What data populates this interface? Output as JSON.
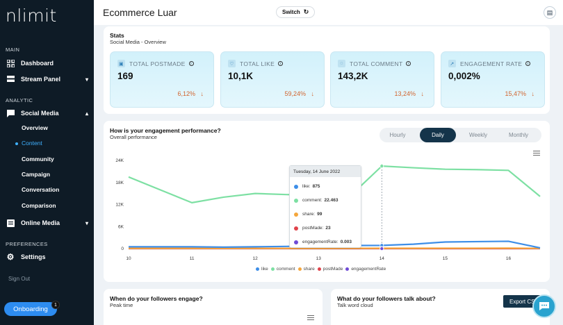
{
  "sidebar": {
    "logo": "nlimit",
    "sections": {
      "main": "MAIN",
      "analytic": "ANALYTIC",
      "preferences": "PREFERENCES"
    },
    "dashboard": "Dashboard",
    "stream_panel": "Stream Panel",
    "social_media": "Social Media",
    "social_sub": [
      "Overview",
      "Content",
      "Community",
      "Campaign",
      "Conversation",
      "Comparison"
    ],
    "online_media": "Online Media",
    "settings": "Settings",
    "sign_out": "Sign Out",
    "onboarding": "Onboarding",
    "onboarding_badge": "1"
  },
  "header": {
    "title": "Ecommerce Luar",
    "switch_label": "Switch"
  },
  "stats": {
    "title": "Stats",
    "subtitle": "Social Media - Overview",
    "cards": [
      {
        "label": "TOTAL POSTMADE",
        "value": "169",
        "change": "6,12%"
      },
      {
        "label": "TOTAL LIKE",
        "value": "10,1K",
        "change": "59,24%"
      },
      {
        "label": "TOTAL COMMENT",
        "value": "143,2K",
        "change": "13,24%"
      },
      {
        "label": "ENGAGEMENT RATE",
        "value": "0,002%",
        "change": "15,47%"
      }
    ]
  },
  "performance": {
    "title": "How is your engagement performance?",
    "subtitle": "Overall performance",
    "tabs": [
      "Hourly",
      "Daily",
      "Weekly",
      "Monthly"
    ],
    "active_tab": "Daily",
    "tooltip": {
      "date": "Tuesday, 14 June 2022",
      "rows": [
        {
          "key": "like:",
          "value": "875"
        },
        {
          "key": "comment:",
          "value": "22.463"
        },
        {
          "key": "share:",
          "value": "99"
        },
        {
          "key": "postMade:",
          "value": "23"
        },
        {
          "key": "engagementRate:",
          "value": "0.003"
        }
      ]
    }
  },
  "chart_data": {
    "type": "line",
    "x": [
      10,
      10.5,
      11,
      11.5,
      12,
      12.5,
      13,
      13.5,
      14,
      14.5,
      15,
      15.5,
      16,
      16.5
    ],
    "xticks": [
      "10",
      "11",
      "12",
      "13",
      "14",
      "15",
      "16"
    ],
    "yticks": [
      "0",
      "6K",
      "12K",
      "18K",
      "24K"
    ],
    "ylim": [
      0,
      24000
    ],
    "series": [
      {
        "name": "like",
        "color": "#3d8ee8",
        "values": [
          500,
          500,
          500,
          400,
          500,
          600,
          800,
          850,
          875,
          1200,
          1800,
          1900,
          2000,
          200
        ]
      },
      {
        "name": "comment",
        "color": "#7de0a3",
        "values": [
          19500,
          16000,
          12500,
          14000,
          15000,
          14700,
          14500,
          14300,
          22463,
          22000,
          21600,
          21500,
          21300,
          14200
        ]
      },
      {
        "name": "share",
        "color": "#f4a63c",
        "values": [
          60,
          60,
          60,
          60,
          60,
          60,
          70,
          80,
          99,
          100,
          110,
          110,
          120,
          60
        ]
      },
      {
        "name": "postMade",
        "color": "#e0434b",
        "values": [
          20,
          20,
          20,
          20,
          20,
          20,
          20,
          22,
          23,
          23,
          24,
          24,
          24,
          20
        ]
      },
      {
        "name": "engagementRate",
        "color": "#6f4bd6",
        "values": [
          0,
          0,
          0,
          0,
          0,
          0,
          0,
          0,
          0,
          0,
          0,
          0,
          0,
          0
        ]
      }
    ]
  },
  "followers_engage": {
    "title": "When do your followers engage?",
    "subtitle": "Peak time"
  },
  "followers_talk": {
    "title": "What do your followers talk about?",
    "subtitle": "Talk word cloud",
    "export_label": "Export CS"
  }
}
